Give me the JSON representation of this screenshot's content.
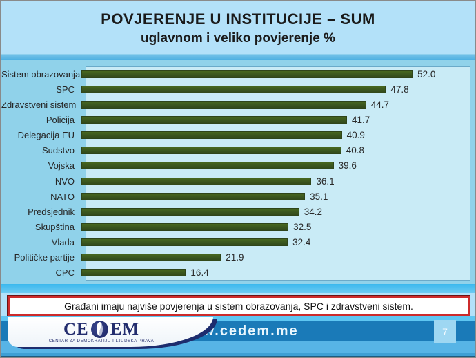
{
  "slide": {
    "title_line1": "POVJERENJE U INSTITUCIJE – SUM",
    "title_line2": "uglavnom i veliko povjerenje %",
    "callout_text": "Građani imaju najviše povjerenja u sistem obrazovanja, SPC i zdravstveni sistem.",
    "page_number": "7"
  },
  "footer": {
    "url": "www.cedem.me",
    "logo_ce": "CE",
    "logo_em": "EM",
    "logo_tagline": "CENTAR ZA DEMOKRATIJU I LJUDSKA PRAVA"
  },
  "colors": {
    "bar_green": "#3a561f",
    "plot_background": "#c9ebf6",
    "chart_background": "#90d2ea",
    "slide_background": "#b3e1f9",
    "footer_band_blue": "#1a7ab8",
    "callout_border_red": "#cd2b2b"
  },
  "chart_data": {
    "type": "bar",
    "orientation": "horizontal",
    "title": "POVJERENJE U INSTITUCIJE – SUM",
    "subtitle": "uglavnom i veliko povjerenje %",
    "categories": [
      "Sistem obrazovanja",
      "SPC",
      "Zdravstveni sistem",
      "Policija",
      "Delegacija EU",
      "Sudstvo",
      "Vojska",
      "NVO",
      "NATO",
      "Predsjednik",
      "Skupština",
      "Vlada",
      "Političke partije",
      "CPC"
    ],
    "values": [
      52.0,
      47.8,
      44.7,
      41.7,
      40.9,
      40.8,
      39.6,
      36.1,
      35.1,
      34.2,
      32.5,
      32.4,
      21.9,
      16.4
    ],
    "value_labels": [
      "52.0",
      "47.8",
      "44.7",
      "41.7",
      "40.9",
      "40.8",
      "39.6",
      "36.1",
      "35.1",
      "34.2",
      "32.5",
      "32.4",
      "21.9",
      "16.4"
    ],
    "xlim": [
      0,
      60
    ],
    "grid": false,
    "legend": false,
    "sorted_descending": true
  }
}
